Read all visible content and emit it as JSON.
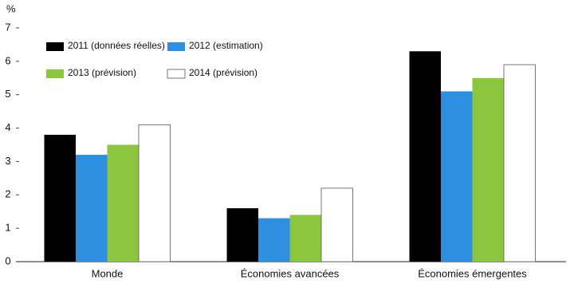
{
  "chart_data": {
    "type": "bar",
    "y_label": "%",
    "categories": [
      "Monde",
      "Économies avancées",
      "Économies émergentes"
    ],
    "series": [
      {
        "name": "2011 (données réelles)",
        "color": "#000000",
        "values": [
          3.8,
          1.6,
          6.3
        ]
      },
      {
        "name": "2012 (estimation)",
        "color": "#2e8fe0",
        "values": [
          3.2,
          1.3,
          5.1
        ]
      },
      {
        "name": "2013 (prévision)",
        "color": "#8cc63f",
        "values": [
          3.5,
          1.4,
          5.5
        ]
      },
      {
        "name": "2014 (prévision)",
        "color": "#ffffff",
        "values": [
          4.1,
          2.2,
          5.9
        ]
      }
    ],
    "ylim": [
      0,
      7
    ],
    "yticks": [
      0,
      1,
      2,
      3,
      4,
      5,
      6,
      7
    ]
  }
}
